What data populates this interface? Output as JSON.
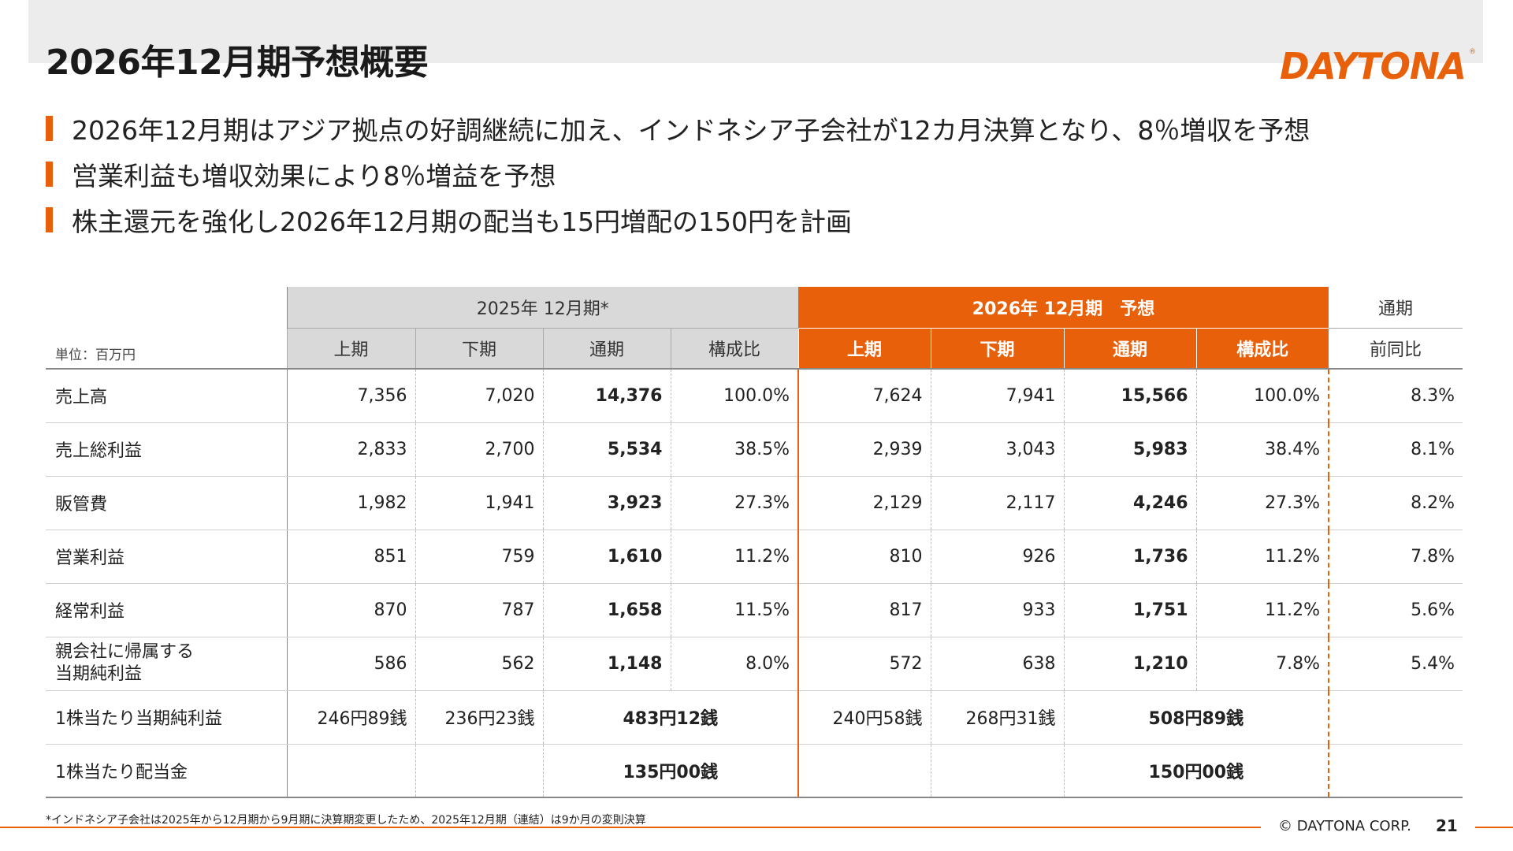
{
  "title": "2026年12月期予想概要",
  "logo_text": "DAYTONA",
  "bullets": [
    "2026年12月期はアジア拠点の好調継続に加え、インドネシア子会社が12カ月決算となり、8％増収を予想",
    "営業利益も増収効果により8％増益を予想",
    "株主還元を強化し2026年12月期の配当も15円増配の150円を計画"
  ],
  "table": {
    "unit_label": "単位：百万円",
    "group_2025": "2025年 12月期*",
    "group_2026": "2026年 12月期　予想",
    "group_full": "通期",
    "sub_2025": [
      "上期",
      "下期",
      "通期",
      "構成比"
    ],
    "sub_2026": [
      "上期",
      "下期",
      "通期",
      "構成比"
    ],
    "sub_yoy": "前同比",
    "rows": [
      {
        "label": "売上高",
        "v": [
          "7,356",
          "7,020",
          "14,376",
          "100.0%",
          "7,624",
          "7,941",
          "15,566",
          "100.0%",
          "8.3%"
        ]
      },
      {
        "label": "売上総利益",
        "v": [
          "2,833",
          "2,700",
          "5,534",
          "38.5%",
          "2,939",
          "3,043",
          "5,983",
          "38.4%",
          "8.1%"
        ]
      },
      {
        "label": "販管費",
        "v": [
          "1,982",
          "1,941",
          "3,923",
          "27.3%",
          "2,129",
          "2,117",
          "4,246",
          "27.3%",
          "8.2%"
        ]
      },
      {
        "label": "営業利益",
        "v": [
          "851",
          "759",
          "1,610",
          "11.2%",
          "810",
          "926",
          "1,736",
          "11.2%",
          "7.8%"
        ]
      },
      {
        "label": "経常利益",
        "v": [
          "870",
          "787",
          "1,658",
          "11.5%",
          "817",
          "933",
          "1,751",
          "11.2%",
          "5.6%"
        ]
      },
      {
        "label1": "親会社に帰属する",
        "label2": "当期純利益",
        "v": [
          "586",
          "562",
          "1,148",
          "8.0%",
          "572",
          "638",
          "1,210",
          "7.8%",
          "5.4%"
        ]
      }
    ],
    "eps": {
      "label": "1株当たり当期純利益",
      "h1_2025": "246円89銭",
      "h2_2025": "236円23銭",
      "fy_2025": "483円12銭",
      "h1_2026": "240円58銭",
      "h2_2026": "268円31銭",
      "fy_2026": "508円89銭"
    },
    "dps": {
      "label": "1株当たり配当金",
      "fy_2025": "135円00銭",
      "fy_2026": "150円00銭"
    }
  },
  "footnote": "*インドネシア子会社は2025年から12月期から9月期に決算期変更したため、2025年12月期（連結）は9か月の変則決算",
  "copyright": "© DAYTONA CORP.",
  "page_number": "21",
  "colors": {
    "accent": "#e8600a",
    "header_grey": "#d9d9d9",
    "band_grey": "#ececec"
  }
}
